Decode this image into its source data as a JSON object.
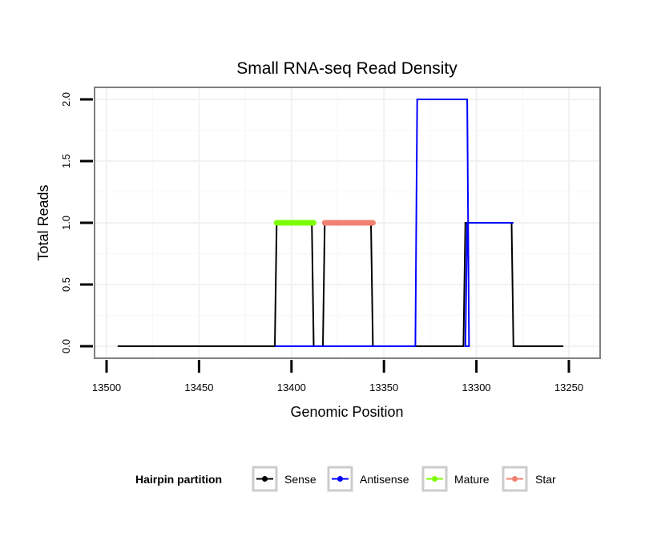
{
  "chart_data": {
    "type": "line",
    "title": "Small RNA-seq Read Density",
    "xlabel": "Genomic Position",
    "ylabel": "Total Reads",
    "xlim": [
      13505,
      13245
    ],
    "ylim": [
      -0.1,
      2.1
    ],
    "x_reversed": true,
    "x_ticks": [
      13500,
      13450,
      13400,
      13350,
      13300,
      13250
    ],
    "y_ticks": [
      0.0,
      0.5,
      1.0,
      1.5,
      2.0
    ],
    "x_tick_labels": [
      "13500",
      "13450",
      "13400",
      "13350",
      "13300",
      "13250"
    ],
    "y_tick_labels": [
      "0.0",
      "0.5",
      "1.0",
      "1.5",
      "2.0"
    ],
    "grid": true,
    "legend": {
      "title": "Hairpin partition",
      "placement": "bottom",
      "entries": [
        "Sense",
        "Antisense",
        "Mature",
        "Star"
      ]
    },
    "series": [
      {
        "name": "Sense",
        "color": "#000000",
        "style": "line",
        "x": [
          13494,
          13409,
          13408,
          13389,
          13388,
          13383,
          13382,
          13357,
          13356,
          13307,
          13306,
          13281,
          13280,
          13253
        ],
        "y": [
          0,
          0,
          1,
          1,
          0,
          0,
          1,
          1,
          0,
          0,
          1,
          1,
          0,
          0
        ]
      },
      {
        "name": "Antisense",
        "color": "#0000ff",
        "style": "line",
        "x": [
          13409,
          13333,
          13332,
          13305,
          13304,
          13306,
          13305,
          13280
        ],
        "y": [
          0,
          0,
          2,
          2,
          0,
          0,
          1,
          1
        ]
      },
      {
        "name": "Mature",
        "color": "#7cfc00",
        "style": "thick-segment",
        "x": [
          13408,
          13388
        ],
        "y": [
          1,
          1
        ]
      },
      {
        "name": "Star",
        "color": "#f08070",
        "style": "thick-segment",
        "x": [
          13382,
          13356
        ],
        "y": [
          1,
          1
        ]
      }
    ]
  }
}
